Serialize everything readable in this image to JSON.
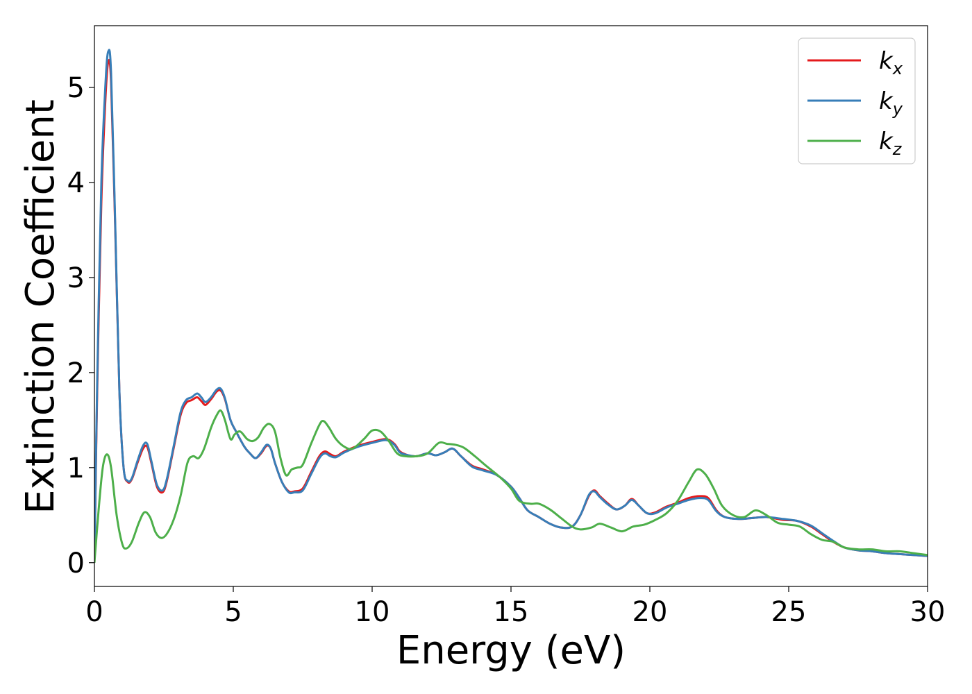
{
  "chart_data": {
    "type": "line",
    "title": "",
    "xlabel": "Energy (eV)",
    "ylabel": "Extinction Coefficient",
    "xlim": [
      0,
      30
    ],
    "ylim": [
      -0.25,
      5.65
    ],
    "xticks": [
      0,
      5,
      10,
      15,
      20,
      25,
      30
    ],
    "xtick_labels": [
      "0",
      "5",
      "10",
      "15",
      "20",
      "25",
      "30"
    ],
    "yticks": [
      0,
      1,
      2,
      3,
      4,
      5
    ],
    "ytick_labels": [
      "0",
      "1",
      "2",
      "3",
      "4",
      "5"
    ],
    "grid": false,
    "legend": {
      "placement": "top-right",
      "entries": [
        {
          "base": "k",
          "sub": "x"
        },
        {
          "base": "k",
          "sub": "y"
        },
        {
          "base": "k",
          "sub": "z"
        }
      ]
    },
    "series": [
      {
        "color": "#e41a1c",
        "points": [
          [
            0,
            0
          ],
          [
            0.1,
            1.8
          ],
          [
            0.25,
            3.8
          ],
          [
            0.4,
            4.9
          ],
          [
            0.5,
            5.27
          ],
          [
            0.6,
            5.05
          ],
          [
            0.75,
            3.5
          ],
          [
            0.9,
            1.8
          ],
          [
            1.05,
            1.0
          ],
          [
            1.2,
            0.85
          ],
          [
            1.35,
            0.88
          ],
          [
            1.55,
            1.05
          ],
          [
            1.75,
            1.2
          ],
          [
            1.9,
            1.22
          ],
          [
            2.05,
            1.05
          ],
          [
            2.25,
            0.8
          ],
          [
            2.45,
            0.74
          ],
          [
            2.6,
            0.85
          ],
          [
            2.85,
            1.2
          ],
          [
            3.1,
            1.55
          ],
          [
            3.3,
            1.68
          ],
          [
            3.5,
            1.71
          ],
          [
            3.7,
            1.74
          ],
          [
            3.85,
            1.7
          ],
          [
            4.0,
            1.66
          ],
          [
            4.2,
            1.72
          ],
          [
            4.4,
            1.8
          ],
          [
            4.55,
            1.81
          ],
          [
            4.7,
            1.72
          ],
          [
            4.9,
            1.5
          ],
          [
            5.1,
            1.38
          ],
          [
            5.4,
            1.22
          ],
          [
            5.6,
            1.15
          ],
          [
            5.8,
            1.1
          ],
          [
            6.0,
            1.15
          ],
          [
            6.2,
            1.23
          ],
          [
            6.35,
            1.2
          ],
          [
            6.5,
            1.05
          ],
          [
            6.75,
            0.85
          ],
          [
            7.0,
            0.75
          ],
          [
            7.2,
            0.75
          ],
          [
            7.5,
            0.78
          ],
          [
            7.8,
            0.95
          ],
          [
            8.1,
            1.12
          ],
          [
            8.3,
            1.17
          ],
          [
            8.5,
            1.14
          ],
          [
            8.7,
            1.12
          ],
          [
            9.0,
            1.17
          ],
          [
            9.5,
            1.23
          ],
          [
            10.0,
            1.27
          ],
          [
            10.5,
            1.3
          ],
          [
            10.8,
            1.25
          ],
          [
            11.0,
            1.17
          ],
          [
            11.3,
            1.13
          ],
          [
            11.6,
            1.12
          ],
          [
            12.0,
            1.15
          ],
          [
            12.3,
            1.13
          ],
          [
            12.6,
            1.16
          ],
          [
            12.9,
            1.2
          ],
          [
            13.2,
            1.12
          ],
          [
            13.6,
            1.02
          ],
          [
            14.0,
            0.98
          ],
          [
            14.5,
            0.92
          ],
          [
            15.0,
            0.8
          ],
          [
            15.3,
            0.68
          ],
          [
            15.6,
            0.55
          ],
          [
            16.0,
            0.48
          ],
          [
            16.4,
            0.41
          ],
          [
            16.8,
            0.37
          ],
          [
            17.2,
            0.38
          ],
          [
            17.5,
            0.5
          ],
          [
            17.8,
            0.7
          ],
          [
            18.0,
            0.76
          ],
          [
            18.2,
            0.7
          ],
          [
            18.5,
            0.62
          ],
          [
            18.8,
            0.56
          ],
          [
            19.1,
            0.6
          ],
          [
            19.35,
            0.67
          ],
          [
            19.6,
            0.6
          ],
          [
            19.9,
            0.52
          ],
          [
            20.2,
            0.53
          ],
          [
            20.6,
            0.59
          ],
          [
            21.0,
            0.63
          ],
          [
            21.4,
            0.68
          ],
          [
            21.8,
            0.7
          ],
          [
            22.1,
            0.68
          ],
          [
            22.4,
            0.55
          ],
          [
            22.7,
            0.48
          ],
          [
            23.2,
            0.46
          ],
          [
            23.7,
            0.47
          ],
          [
            24.2,
            0.48
          ],
          [
            24.8,
            0.45
          ],
          [
            25.3,
            0.44
          ],
          [
            25.8,
            0.38
          ],
          [
            26.2,
            0.3
          ],
          [
            26.6,
            0.22
          ],
          [
            27.0,
            0.16
          ],
          [
            27.5,
            0.13
          ],
          [
            28.0,
            0.12
          ],
          [
            28.5,
            0.1
          ],
          [
            29.0,
            0.09
          ],
          [
            29.5,
            0.08
          ],
          [
            30.0,
            0.07
          ]
        ]
      },
      {
        "color": "#377eb8",
        "points": [
          [
            0,
            0
          ],
          [
            0.1,
            1.9
          ],
          [
            0.25,
            4.0
          ],
          [
            0.4,
            5.05
          ],
          [
            0.5,
            5.38
          ],
          [
            0.6,
            5.15
          ],
          [
            0.75,
            3.55
          ],
          [
            0.9,
            1.8
          ],
          [
            1.05,
            1.0
          ],
          [
            1.2,
            0.86
          ],
          [
            1.35,
            0.89
          ],
          [
            1.55,
            1.07
          ],
          [
            1.75,
            1.23
          ],
          [
            1.9,
            1.25
          ],
          [
            2.05,
            1.07
          ],
          [
            2.25,
            0.82
          ],
          [
            2.45,
            0.76
          ],
          [
            2.6,
            0.87
          ],
          [
            2.85,
            1.22
          ],
          [
            3.1,
            1.58
          ],
          [
            3.3,
            1.71
          ],
          [
            3.5,
            1.74
          ],
          [
            3.7,
            1.78
          ],
          [
            3.85,
            1.74
          ],
          [
            4.0,
            1.69
          ],
          [
            4.2,
            1.74
          ],
          [
            4.4,
            1.82
          ],
          [
            4.55,
            1.83
          ],
          [
            4.7,
            1.73
          ],
          [
            4.9,
            1.5
          ],
          [
            5.1,
            1.38
          ],
          [
            5.4,
            1.22
          ],
          [
            5.6,
            1.15
          ],
          [
            5.8,
            1.1
          ],
          [
            6.0,
            1.16
          ],
          [
            6.2,
            1.24
          ],
          [
            6.35,
            1.2
          ],
          [
            6.5,
            1.05
          ],
          [
            6.75,
            0.85
          ],
          [
            7.0,
            0.74
          ],
          [
            7.2,
            0.74
          ],
          [
            7.5,
            0.76
          ],
          [
            7.8,
            0.93
          ],
          [
            8.1,
            1.1
          ],
          [
            8.3,
            1.15
          ],
          [
            8.5,
            1.12
          ],
          [
            8.7,
            1.11
          ],
          [
            9.0,
            1.16
          ],
          [
            9.5,
            1.22
          ],
          [
            10.0,
            1.26
          ],
          [
            10.5,
            1.29
          ],
          [
            10.8,
            1.24
          ],
          [
            11.0,
            1.16
          ],
          [
            11.3,
            1.13
          ],
          [
            11.6,
            1.12
          ],
          [
            12.0,
            1.15
          ],
          [
            12.3,
            1.13
          ],
          [
            12.6,
            1.16
          ],
          [
            12.9,
            1.2
          ],
          [
            13.2,
            1.12
          ],
          [
            13.6,
            1.01
          ],
          [
            14.0,
            0.97
          ],
          [
            14.5,
            0.92
          ],
          [
            15.0,
            0.8
          ],
          [
            15.3,
            0.68
          ],
          [
            15.6,
            0.55
          ],
          [
            16.0,
            0.48
          ],
          [
            16.4,
            0.41
          ],
          [
            16.8,
            0.37
          ],
          [
            17.2,
            0.38
          ],
          [
            17.5,
            0.5
          ],
          [
            17.8,
            0.71
          ],
          [
            18.0,
            0.75
          ],
          [
            18.2,
            0.69
          ],
          [
            18.5,
            0.61
          ],
          [
            18.8,
            0.56
          ],
          [
            19.1,
            0.6
          ],
          [
            19.35,
            0.66
          ],
          [
            19.6,
            0.6
          ],
          [
            19.9,
            0.52
          ],
          [
            20.2,
            0.52
          ],
          [
            20.6,
            0.58
          ],
          [
            21.0,
            0.62
          ],
          [
            21.4,
            0.66
          ],
          [
            21.8,
            0.68
          ],
          [
            22.1,
            0.66
          ],
          [
            22.4,
            0.54
          ],
          [
            22.7,
            0.48
          ],
          [
            23.2,
            0.46
          ],
          [
            23.7,
            0.47
          ],
          [
            24.2,
            0.48
          ],
          [
            24.8,
            0.46
          ],
          [
            25.3,
            0.44
          ],
          [
            25.8,
            0.39
          ],
          [
            26.2,
            0.31
          ],
          [
            26.6,
            0.23
          ],
          [
            27.0,
            0.16
          ],
          [
            27.5,
            0.13
          ],
          [
            28.0,
            0.12
          ],
          [
            28.5,
            0.1
          ],
          [
            29.0,
            0.09
          ],
          [
            29.5,
            0.08
          ],
          [
            30.0,
            0.07
          ]
        ]
      },
      {
        "color": "#4daf4a",
        "points": [
          [
            0,
            0
          ],
          [
            0.15,
            0.55
          ],
          [
            0.3,
            1.0
          ],
          [
            0.45,
            1.14
          ],
          [
            0.6,
            1.0
          ],
          [
            0.8,
            0.5
          ],
          [
            1.0,
            0.2
          ],
          [
            1.15,
            0.15
          ],
          [
            1.35,
            0.22
          ],
          [
            1.6,
            0.42
          ],
          [
            1.8,
            0.53
          ],
          [
            2.0,
            0.48
          ],
          [
            2.2,
            0.32
          ],
          [
            2.4,
            0.26
          ],
          [
            2.6,
            0.3
          ],
          [
            2.85,
            0.45
          ],
          [
            3.1,
            0.7
          ],
          [
            3.35,
            1.05
          ],
          [
            3.55,
            1.12
          ],
          [
            3.75,
            1.1
          ],
          [
            3.95,
            1.2
          ],
          [
            4.2,
            1.42
          ],
          [
            4.4,
            1.55
          ],
          [
            4.55,
            1.6
          ],
          [
            4.7,
            1.5
          ],
          [
            4.9,
            1.3
          ],
          [
            5.05,
            1.35
          ],
          [
            5.25,
            1.38
          ],
          [
            5.5,
            1.3
          ],
          [
            5.7,
            1.28
          ],
          [
            5.9,
            1.32
          ],
          [
            6.1,
            1.42
          ],
          [
            6.3,
            1.46
          ],
          [
            6.5,
            1.38
          ],
          [
            6.7,
            1.1
          ],
          [
            6.9,
            0.92
          ],
          [
            7.1,
            0.98
          ],
          [
            7.3,
            1.0
          ],
          [
            7.5,
            1.03
          ],
          [
            7.8,
            1.25
          ],
          [
            8.1,
            1.45
          ],
          [
            8.25,
            1.49
          ],
          [
            8.45,
            1.42
          ],
          [
            8.7,
            1.3
          ],
          [
            9.0,
            1.22
          ],
          [
            9.3,
            1.2
          ],
          [
            9.7,
            1.3
          ],
          [
            10.0,
            1.39
          ],
          [
            10.3,
            1.38
          ],
          [
            10.6,
            1.28
          ],
          [
            10.9,
            1.15
          ],
          [
            11.2,
            1.12
          ],
          [
            11.6,
            1.12
          ],
          [
            12.0,
            1.15
          ],
          [
            12.4,
            1.26
          ],
          [
            12.7,
            1.25
          ],
          [
            13.0,
            1.24
          ],
          [
            13.3,
            1.21
          ],
          [
            13.7,
            1.12
          ],
          [
            14.1,
            1.02
          ],
          [
            14.6,
            0.9
          ],
          [
            15.0,
            0.78
          ],
          [
            15.3,
            0.65
          ],
          [
            15.7,
            0.62
          ],
          [
            16.0,
            0.62
          ],
          [
            16.4,
            0.56
          ],
          [
            16.8,
            0.47
          ],
          [
            17.2,
            0.38
          ],
          [
            17.5,
            0.35
          ],
          [
            17.9,
            0.37
          ],
          [
            18.2,
            0.41
          ],
          [
            18.6,
            0.37
          ],
          [
            19.0,
            0.33
          ],
          [
            19.4,
            0.38
          ],
          [
            19.8,
            0.4
          ],
          [
            20.2,
            0.45
          ],
          [
            20.6,
            0.52
          ],
          [
            21.0,
            0.65
          ],
          [
            21.4,
            0.85
          ],
          [
            21.7,
            0.98
          ],
          [
            22.0,
            0.93
          ],
          [
            22.3,
            0.78
          ],
          [
            22.6,
            0.6
          ],
          [
            23.0,
            0.5
          ],
          [
            23.4,
            0.48
          ],
          [
            23.8,
            0.55
          ],
          [
            24.2,
            0.5
          ],
          [
            24.6,
            0.42
          ],
          [
            25.0,
            0.4
          ],
          [
            25.4,
            0.38
          ],
          [
            25.8,
            0.3
          ],
          [
            26.2,
            0.24
          ],
          [
            26.6,
            0.22
          ],
          [
            27.0,
            0.16
          ],
          [
            27.5,
            0.14
          ],
          [
            28.0,
            0.14
          ],
          [
            28.5,
            0.12
          ],
          [
            29.0,
            0.12
          ],
          [
            29.5,
            0.1
          ],
          [
            30.0,
            0.08
          ]
        ]
      }
    ]
  }
}
